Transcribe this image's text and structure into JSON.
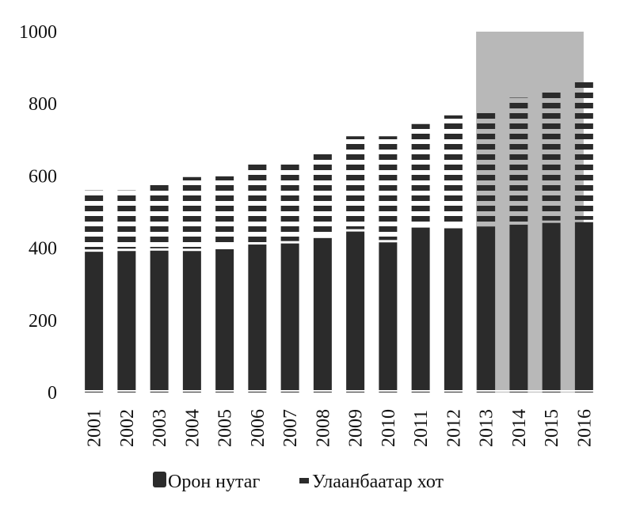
{
  "chart_data": {
    "type": "bar",
    "stacked": true,
    "title": "",
    "xlabel": "",
    "ylabel": "",
    "ylim": [
      0,
      1000
    ],
    "yticks": [
      "0",
      "200",
      "400",
      "600",
      "800",
      "1000"
    ],
    "grid": false,
    "legend_position": "bottom",
    "highlight_range": [
      "2014",
      "2016"
    ],
    "categories": [
      "2001",
      "2002",
      "2003",
      "2004",
      "2005",
      "2006",
      "2007",
      "2008",
      "2009",
      "2010",
      "2011",
      "2012",
      "2013",
      "2014",
      "2015",
      "2016"
    ],
    "series": [
      {
        "name": "Орон нутаг",
        "values": [
          390,
          392,
          393,
          392,
          397,
          410,
          413,
          428,
          446,
          416,
          457,
          455,
          460,
          465,
          470,
          472
        ],
        "color": "#2b2b2b",
        "pattern": "solid"
      },
      {
        "name": "Улаанбаатар хот",
        "values": [
          170,
          168,
          192,
          205,
          202,
          224,
          222,
          244,
          264,
          294,
          287,
          313,
          325,
          352,
          370,
          393
        ],
        "color": "#2b2b2b",
        "pattern": "dashed"
      }
    ],
    "colors": {
      "highlight": "#b8b8b8",
      "bar": "#2b2b2b",
      "background": "#ffffff"
    }
  }
}
